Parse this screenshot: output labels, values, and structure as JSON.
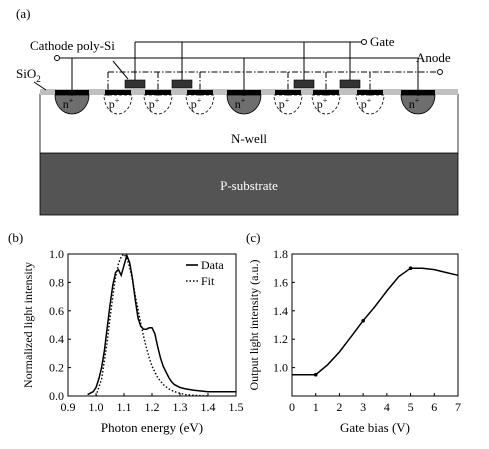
{
  "figure": {
    "panel_a": {
      "label": "(a)",
      "labels": {
        "cathode": "Cathode poly-Si",
        "gate": "Gate",
        "anode": "Anode",
        "sio2": "SiO",
        "sio2_sub": "2",
        "nwell": "N-well",
        "psub": "P-substrate"
      },
      "regions": [
        {
          "type": "n",
          "text": "n",
          "sup": "+"
        },
        {
          "type": "p",
          "text": "p",
          "sup": "+"
        },
        {
          "type": "p",
          "text": "p",
          "sup": "+"
        },
        {
          "type": "p",
          "text": "p",
          "sup": "+"
        },
        {
          "type": "n",
          "text": "n",
          "sup": "+"
        },
        {
          "type": "p",
          "text": "p",
          "sup": "+"
        },
        {
          "type": "p",
          "text": "p",
          "sup": "+"
        },
        {
          "type": "p",
          "text": "p",
          "sup": "+"
        },
        {
          "type": "n",
          "text": "n",
          "sup": "+"
        }
      ]
    },
    "colors": {
      "nwell": "#ffffff",
      "psub": "#545454",
      "oxide": "#c0c0c0",
      "n_region": "#6e6e6e",
      "gate_poly": "#333333"
    }
  },
  "chart_data": [
    {
      "panel": "(b)",
      "type": "line",
      "xlabel": "Photon energy (eV)",
      "ylabel": "Normalized light intensity",
      "xlim": [
        0.9,
        1.5
      ],
      "ylim": [
        0.0,
        1.0
      ],
      "xticks": [
        "0.9",
        "1.0",
        "1.1",
        "1.2",
        "1.3",
        "1.4",
        "1.5"
      ],
      "yticks": [
        "0.0",
        "0.2",
        "0.4",
        "0.6",
        "0.8",
        "1.0"
      ],
      "legend": "top-right",
      "series": [
        {
          "name": "Data",
          "style": "solid",
          "x": [
            0.97,
            0.99,
            1.0,
            1.01,
            1.02,
            1.03,
            1.04,
            1.05,
            1.06,
            1.07,
            1.08,
            1.09,
            1.1,
            1.11,
            1.12,
            1.13,
            1.14,
            1.15,
            1.16,
            1.17,
            1.18,
            1.19,
            1.2,
            1.21,
            1.22,
            1.23,
            1.24,
            1.25,
            1.26,
            1.27,
            1.28,
            1.3,
            1.32,
            1.35,
            1.4,
            1.45,
            1.5
          ],
          "y": [
            0.01,
            0.03,
            0.06,
            0.12,
            0.2,
            0.32,
            0.48,
            0.64,
            0.78,
            0.87,
            0.89,
            0.85,
            0.92,
            0.99,
            0.94,
            0.83,
            0.68,
            0.55,
            0.49,
            0.47,
            0.47,
            0.48,
            0.48,
            0.44,
            0.35,
            0.27,
            0.21,
            0.17,
            0.13,
            0.1,
            0.08,
            0.06,
            0.05,
            0.04,
            0.03,
            0.03,
            0.03
          ]
        },
        {
          "name": "Fit",
          "style": "dotted",
          "x": [
            1.0,
            1.02,
            1.04,
            1.05,
            1.06,
            1.07,
            1.08,
            1.09,
            1.1,
            1.11,
            1.12,
            1.13,
            1.14,
            1.15,
            1.16,
            1.17,
            1.18,
            1.19,
            1.2,
            1.22,
            1.24,
            1.26,
            1.28,
            1.3,
            1.32,
            1.35,
            1.4
          ],
          "y": [
            0.0,
            0.12,
            0.38,
            0.55,
            0.7,
            0.84,
            0.93,
            0.98,
            1.0,
            0.97,
            0.91,
            0.82,
            0.71,
            0.61,
            0.51,
            0.42,
            0.34,
            0.27,
            0.21,
            0.13,
            0.08,
            0.05,
            0.03,
            0.02,
            0.01,
            0.005,
            0.0
          ]
        }
      ]
    },
    {
      "panel": "(c)",
      "type": "line",
      "xlabel": "Gate bias (V)",
      "ylabel": "Output light intensity (a.u.)",
      "xlim": [
        0,
        7
      ],
      "ylim": [
        0.8,
        1.8
      ],
      "xticks": [
        "0",
        "1",
        "2",
        "3",
        "4",
        "5",
        "6",
        "7"
      ],
      "yticks": [
        "1.0",
        "1.2",
        "1.4",
        "1.6",
        "1.8"
      ],
      "series": [
        {
          "style": "solid-with-markers",
          "x": [
            0.0,
            1.0,
            1.5,
            2.0,
            2.5,
            3.0,
            3.5,
            4.0,
            4.5,
            5.0,
            5.5,
            6.0,
            6.5,
            7.0
          ],
          "y": [
            0.95,
            0.95,
            1.02,
            1.11,
            1.22,
            1.33,
            1.43,
            1.54,
            1.64,
            1.7,
            1.7,
            1.69,
            1.67,
            1.65
          ],
          "marker_x": [
            1,
            3,
            5
          ],
          "marker_y": [
            0.95,
            1.33,
            1.7
          ]
        }
      ]
    }
  ]
}
